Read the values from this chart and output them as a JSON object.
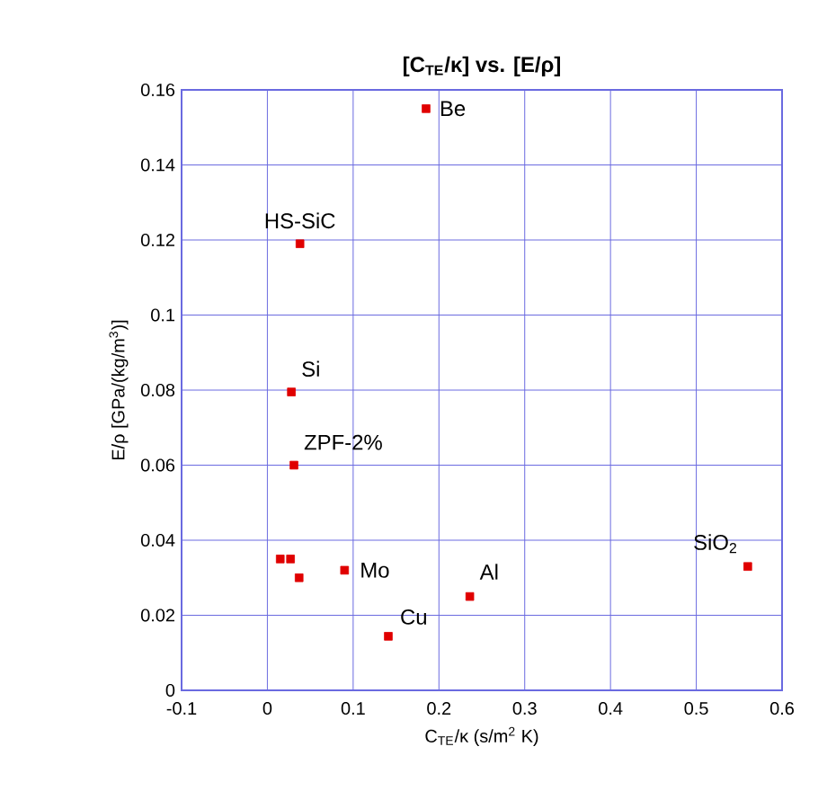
{
  "chart_data": {
    "type": "scatter",
    "title": "[C$_{TE}$/κ] vs. [E/ρ]",
    "xlabel": "C$_{TE}$/κ (s/m$^{2}$ K)",
    "ylabel": "E/ρ [GPa/(kg/m$^{3}$)]",
    "series": [
      {
        "color": "#e00000",
        "x": [
          0.185,
          0.038,
          0.028,
          0.031,
          0.027,
          0.015,
          0.037,
          0.09,
          0.141,
          0.236,
          0.56
        ],
        "values": [
          0.155,
          0.119,
          0.0795,
          0.06,
          0.035,
          0.035,
          0.03,
          0.032,
          0.0144,
          0.025,
          0.033
        ]
      }
    ],
    "annotations": [
      {
        "text": "Be",
        "x": 0.185,
        "y": 0.155
      },
      {
        "text": "HS-SiC",
        "x": 0.038,
        "y": 0.119
      },
      {
        "text": "Si",
        "x": 0.028,
        "y": 0.0795
      },
      {
        "text": "ZPF-2%",
        "x": 0.031,
        "y": 0.06
      },
      {
        "text": "Mo",
        "x": 0.09,
        "y": 0.032
      },
      {
        "text": "Cu",
        "x": 0.141,
        "y": 0.0144
      },
      {
        "text": "Al",
        "x": 0.236,
        "y": 0.025
      },
      {
        "text": "SiO$_{2}$",
        "x": 0.56,
        "y": 0.033
      }
    ],
    "xlim": [
      -0.1,
      0.6
    ],
    "xticks": [
      -0.1,
      0,
      0.1,
      0.2,
      0.3,
      0.4,
      0.5,
      0.6
    ],
    "ylim": [
      0,
      0.16
    ],
    "yticks": [
      0,
      0.02,
      0.04,
      0.06,
      0.08,
      0.1,
      0.12,
      0.14,
      0.16
    ],
    "grid": true,
    "marker": "square"
  }
}
